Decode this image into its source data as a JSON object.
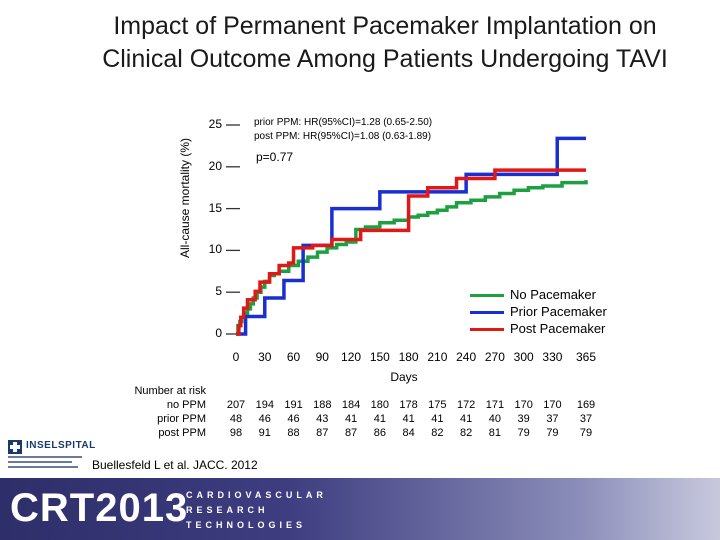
{
  "title_line1": "Impact of Permanent Pacemaker Implantation on",
  "title_line2": "Clinical Outcome Among Patients Undergoing TAVI",
  "hr_prior": "prior PPM:  HR(95%CI)=1.28 (0.65-2.50)",
  "hr_post": "post PPM:  HR(95%CI)=1.08 (0.63-1.89)",
  "pvalue": "p=0.77",
  "risk_header_1": "Number at risk",
  "risk_rows": [
    {
      "label": "no PPM",
      "values": [
        "207",
        "194",
        "191",
        "188",
        "184",
        "180",
        "178",
        "175",
        "172",
        "171",
        "170",
        "170",
        "169"
      ]
    },
    {
      "label": "prior PPM",
      "values": [
        "48",
        "46",
        "46",
        "43",
        "41",
        "41",
        "41",
        "41",
        "41",
        "40",
        "39",
        "37",
        "37"
      ]
    },
    {
      "label": "post PPM",
      "values": [
        "98",
        "91",
        "88",
        "87",
        "87",
        "86",
        "84",
        "82",
        "82",
        "81",
        "79",
        "79",
        "79"
      ]
    }
  ],
  "citation": "Buellesfeld L et al. JACC. 2012",
  "logo_insel": "INSELSPITAL",
  "banner_crt": "CRT2013",
  "banner_lines": [
    "CARDIOVASCULAR",
    "RESEARCH",
    "TECHNOLOGIES"
  ],
  "colors": {
    "no_ppm": "#1fa040",
    "prior_ppm": "#1a2fd0",
    "post_ppm": "#e01818"
  },
  "chart_data": {
    "type": "line",
    "title": "Impact of Permanent Pacemaker Implantation on Clinical Outcome Among Patients Undergoing TAVI",
    "xlabel": "Days",
    "ylabel": "All-cause mortality (%)",
    "xlim": [
      0,
      365
    ],
    "ylim": [
      0,
      25
    ],
    "xticks": [
      "0",
      "30",
      "60",
      "90",
      "120",
      "150",
      "180",
      "210",
      "240",
      "270",
      "300",
      "330",
      "365"
    ],
    "xtick_values": [
      0,
      30,
      60,
      90,
      120,
      150,
      180,
      210,
      240,
      270,
      300,
      330,
      365
    ],
    "yticks": [
      "0",
      "5",
      "10",
      "15",
      "20",
      "25"
    ],
    "ytick_values": [
      0,
      5,
      10,
      15,
      20,
      25
    ],
    "legend_placement": "bottom-right",
    "step": true,
    "series": [
      {
        "name": "No Pacemaker",
        "color": "#1fa040",
        "x": [
          0,
          2,
          4,
          6,
          9,
          12,
          15,
          18,
          22,
          26,
          30,
          35,
          40,
          45,
          55,
          65,
          75,
          85,
          95,
          105,
          115,
          125,
          135,
          150,
          165,
          180,
          190,
          200,
          210,
          220,
          230,
          245,
          260,
          275,
          290,
          305,
          320,
          340,
          365
        ],
        "y": [
          0,
          1.0,
          1.5,
          2.0,
          2.5,
          3.0,
          3.6,
          4.3,
          5.0,
          5.6,
          6.3,
          7.0,
          7.2,
          7.5,
          8.2,
          8.7,
          9.2,
          9.8,
          10.3,
          10.7,
          11.0,
          12.5,
          12.8,
          13.3,
          13.6,
          14.0,
          14.2,
          14.5,
          14.8,
          15.2,
          15.7,
          16.0,
          16.4,
          16.8,
          17.2,
          17.5,
          17.7,
          18.1,
          18.4
        ]
      },
      {
        "name": "Prior Pacemaker",
        "color": "#1a2fd0",
        "x": [
          0,
          10,
          30,
          50,
          70,
          100,
          150,
          240,
          330,
          335,
          365
        ],
        "y": [
          0,
          2.1,
          4.3,
          6.4,
          10.6,
          15.0,
          17.0,
          19.1,
          19.1,
          23.4,
          23.4
        ]
      },
      {
        "name": "Post Pacemaker",
        "color": "#e01818",
        "x": [
          0,
          3,
          5,
          8,
          12,
          20,
          25,
          35,
          45,
          55,
          60,
          80,
          100,
          130,
          170,
          180,
          200,
          230,
          270,
          330,
          365
        ],
        "y": [
          0,
          1.0,
          2.0,
          3.1,
          4.1,
          5.1,
          6.2,
          7.2,
          8.2,
          8.5,
          10.3,
          10.6,
          11.3,
          12.4,
          12.4,
          16.5,
          17.5,
          18.6,
          19.6,
          19.6,
          19.6
        ]
      }
    ]
  }
}
